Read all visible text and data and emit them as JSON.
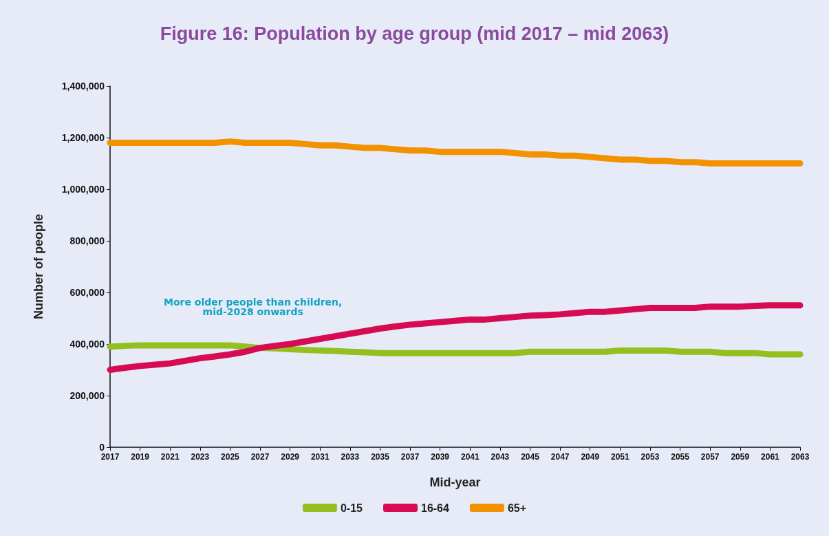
{
  "chart_data": {
    "type": "line",
    "title": "Figure 16: Population by age group (mid 2017 – mid 2063)",
    "xlabel": "Mid-year",
    "ylabel": "Number of people",
    "x": [
      2017,
      2018,
      2019,
      2020,
      2021,
      2022,
      2023,
      2024,
      2025,
      2026,
      2027,
      2028,
      2029,
      2030,
      2031,
      2032,
      2033,
      2034,
      2035,
      2036,
      2037,
      2038,
      2039,
      2040,
      2041,
      2042,
      2043,
      2044,
      2045,
      2046,
      2047,
      2048,
      2049,
      2050,
      2051,
      2052,
      2053,
      2054,
      2055,
      2056,
      2057,
      2058,
      2059,
      2060,
      2061,
      2062,
      2063
    ],
    "series": [
      {
        "name": "0-15",
        "color": "#93c01f",
        "values": [
          390000,
          393000,
          395000,
          395000,
          395000,
          395000,
          395000,
          395000,
          395000,
          390000,
          385000,
          383000,
          380000,
          377000,
          375000,
          373000,
          370000,
          368000,
          365000,
          365000,
          365000,
          365000,
          365000,
          365000,
          365000,
          365000,
          365000,
          365000,
          370000,
          370000,
          370000,
          370000,
          370000,
          370000,
          375000,
          375000,
          375000,
          375000,
          370000,
          370000,
          370000,
          365000,
          365000,
          365000,
          360000,
          360000,
          360000
        ]
      },
      {
        "name": "16-64",
        "color": "#d60b52",
        "values": [
          300000,
          308000,
          315000,
          320000,
          325000,
          335000,
          345000,
          352000,
          360000,
          370000,
          385000,
          393000,
          400000,
          410000,
          420000,
          430000,
          440000,
          450000,
          460000,
          468000,
          475000,
          480000,
          485000,
          490000,
          495000,
          495000,
          500000,
          505000,
          510000,
          512000,
          515000,
          520000,
          525000,
          525000,
          530000,
          535000,
          540000,
          540000,
          540000,
          540000,
          545000,
          545000,
          545000,
          548000,
          550000,
          550000,
          550000
        ]
      },
      {
        "name": "65+",
        "color": "#f39200",
        "values": [
          1180000,
          1180000,
          1180000,
          1180000,
          1180000,
          1180000,
          1180000,
          1180000,
          1185000,
          1180000,
          1180000,
          1180000,
          1180000,
          1175000,
          1170000,
          1170000,
          1165000,
          1160000,
          1160000,
          1155000,
          1150000,
          1150000,
          1145000,
          1145000,
          1145000,
          1145000,
          1145000,
          1140000,
          1135000,
          1135000,
          1130000,
          1130000,
          1125000,
          1120000,
          1115000,
          1115000,
          1110000,
          1110000,
          1105000,
          1105000,
          1100000,
          1100000,
          1100000,
          1100000,
          1100000,
          1100000,
          1100000
        ]
      }
    ],
    "xlim": [
      2017,
      2063
    ],
    "xticks": [
      2017,
      2019,
      2021,
      2023,
      2025,
      2027,
      2029,
      2031,
      2033,
      2035,
      2037,
      2039,
      2041,
      2043,
      2045,
      2047,
      2049,
      2051,
      2053,
      2055,
      2057,
      2059,
      2061,
      2063
    ],
    "ylim": [
      0,
      1400000
    ],
    "yticks": [
      0,
      {
        "value": 200000,
        "label": "200,000"
      },
      {
        "value": 400000,
        "label": "400,000"
      },
      {
        "value": 600000,
        "label": "600,000"
      },
      {
        "value": 800000,
        "label": "800,000"
      },
      {
        "value": 1000000,
        "label": "1,000,000"
      },
      {
        "value": 1200000,
        "label": "1,200,000"
      },
      {
        "value": 1400000,
        "label": "1,400,000"
      }
    ],
    "annotations": [
      "More older people than children,\nmid-2028 onwards"
    ],
    "grid": false,
    "legend": "bottom",
    "marker": "none",
    "line_style": "solid"
  }
}
